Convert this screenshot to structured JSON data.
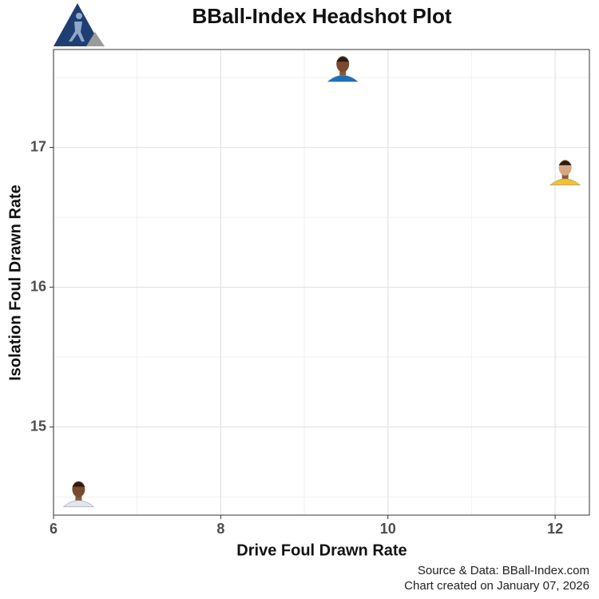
{
  "chart_data": {
    "type": "scatter",
    "title": "BBall-Index Headshot Plot",
    "x_label": "Drive Foul Drawn Rate",
    "y_label": "Isolation Foul Drawn Rate",
    "x": [
      6.3,
      9.46,
      12.12
    ],
    "y": [
      14.51,
      17.55,
      16.81
    ],
    "colors": [
      "#dfe6f2",
      "#1d6fb8",
      "#f2c230"
    ],
    "xlim": [
      6,
      12.41
    ],
    "ylim": [
      14.37,
      17.7
    ],
    "xticks": [
      6,
      8,
      10,
      12
    ],
    "yticks": [
      15,
      16,
      17
    ],
    "xminor": [
      7,
      9,
      11
    ],
    "yminor": [
      14.5,
      15.5,
      16.5,
      17.5
    ],
    "grid": true,
    "caption": [
      "Source & Data: BBall-Index.com",
      "Chart created on January 07, 2026"
    ]
  }
}
